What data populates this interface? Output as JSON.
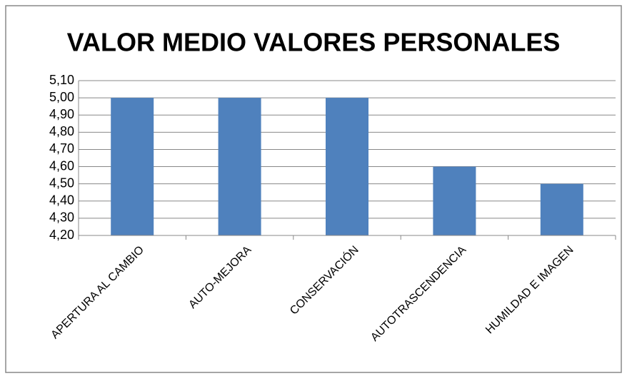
{
  "chart_data": {
    "type": "bar",
    "title": "VALOR MEDIO VALORES PERSONALES",
    "categories": [
      "APERTURA AL CAMBIO",
      "AUTO-MEJORA",
      "CONSERVACIÓN",
      "AUTOTRASCENDENCIA",
      "HUMILDAD E IMAGEN"
    ],
    "values": [
      5.0,
      5.0,
      5.0,
      4.6,
      4.5
    ],
    "color": "#4f81bd",
    "ylim": [
      4.2,
      5.1
    ],
    "yticks": [
      {
        "value": 4.2,
        "label": "4,20"
      },
      {
        "value": 4.3,
        "label": "4,30"
      },
      {
        "value": 4.4,
        "label": "4,40"
      },
      {
        "value": 4.5,
        "label": "4,50"
      },
      {
        "value": 4.6,
        "label": "4,60"
      },
      {
        "value": 4.7,
        "label": "4,70"
      },
      {
        "value": 4.8,
        "label": "4,80"
      },
      {
        "value": 4.9,
        "label": "4,90"
      },
      {
        "value": 5.0,
        "label": "5,00"
      },
      {
        "value": 5.1,
        "label": "5,10"
      }
    ],
    "grid": true
  }
}
